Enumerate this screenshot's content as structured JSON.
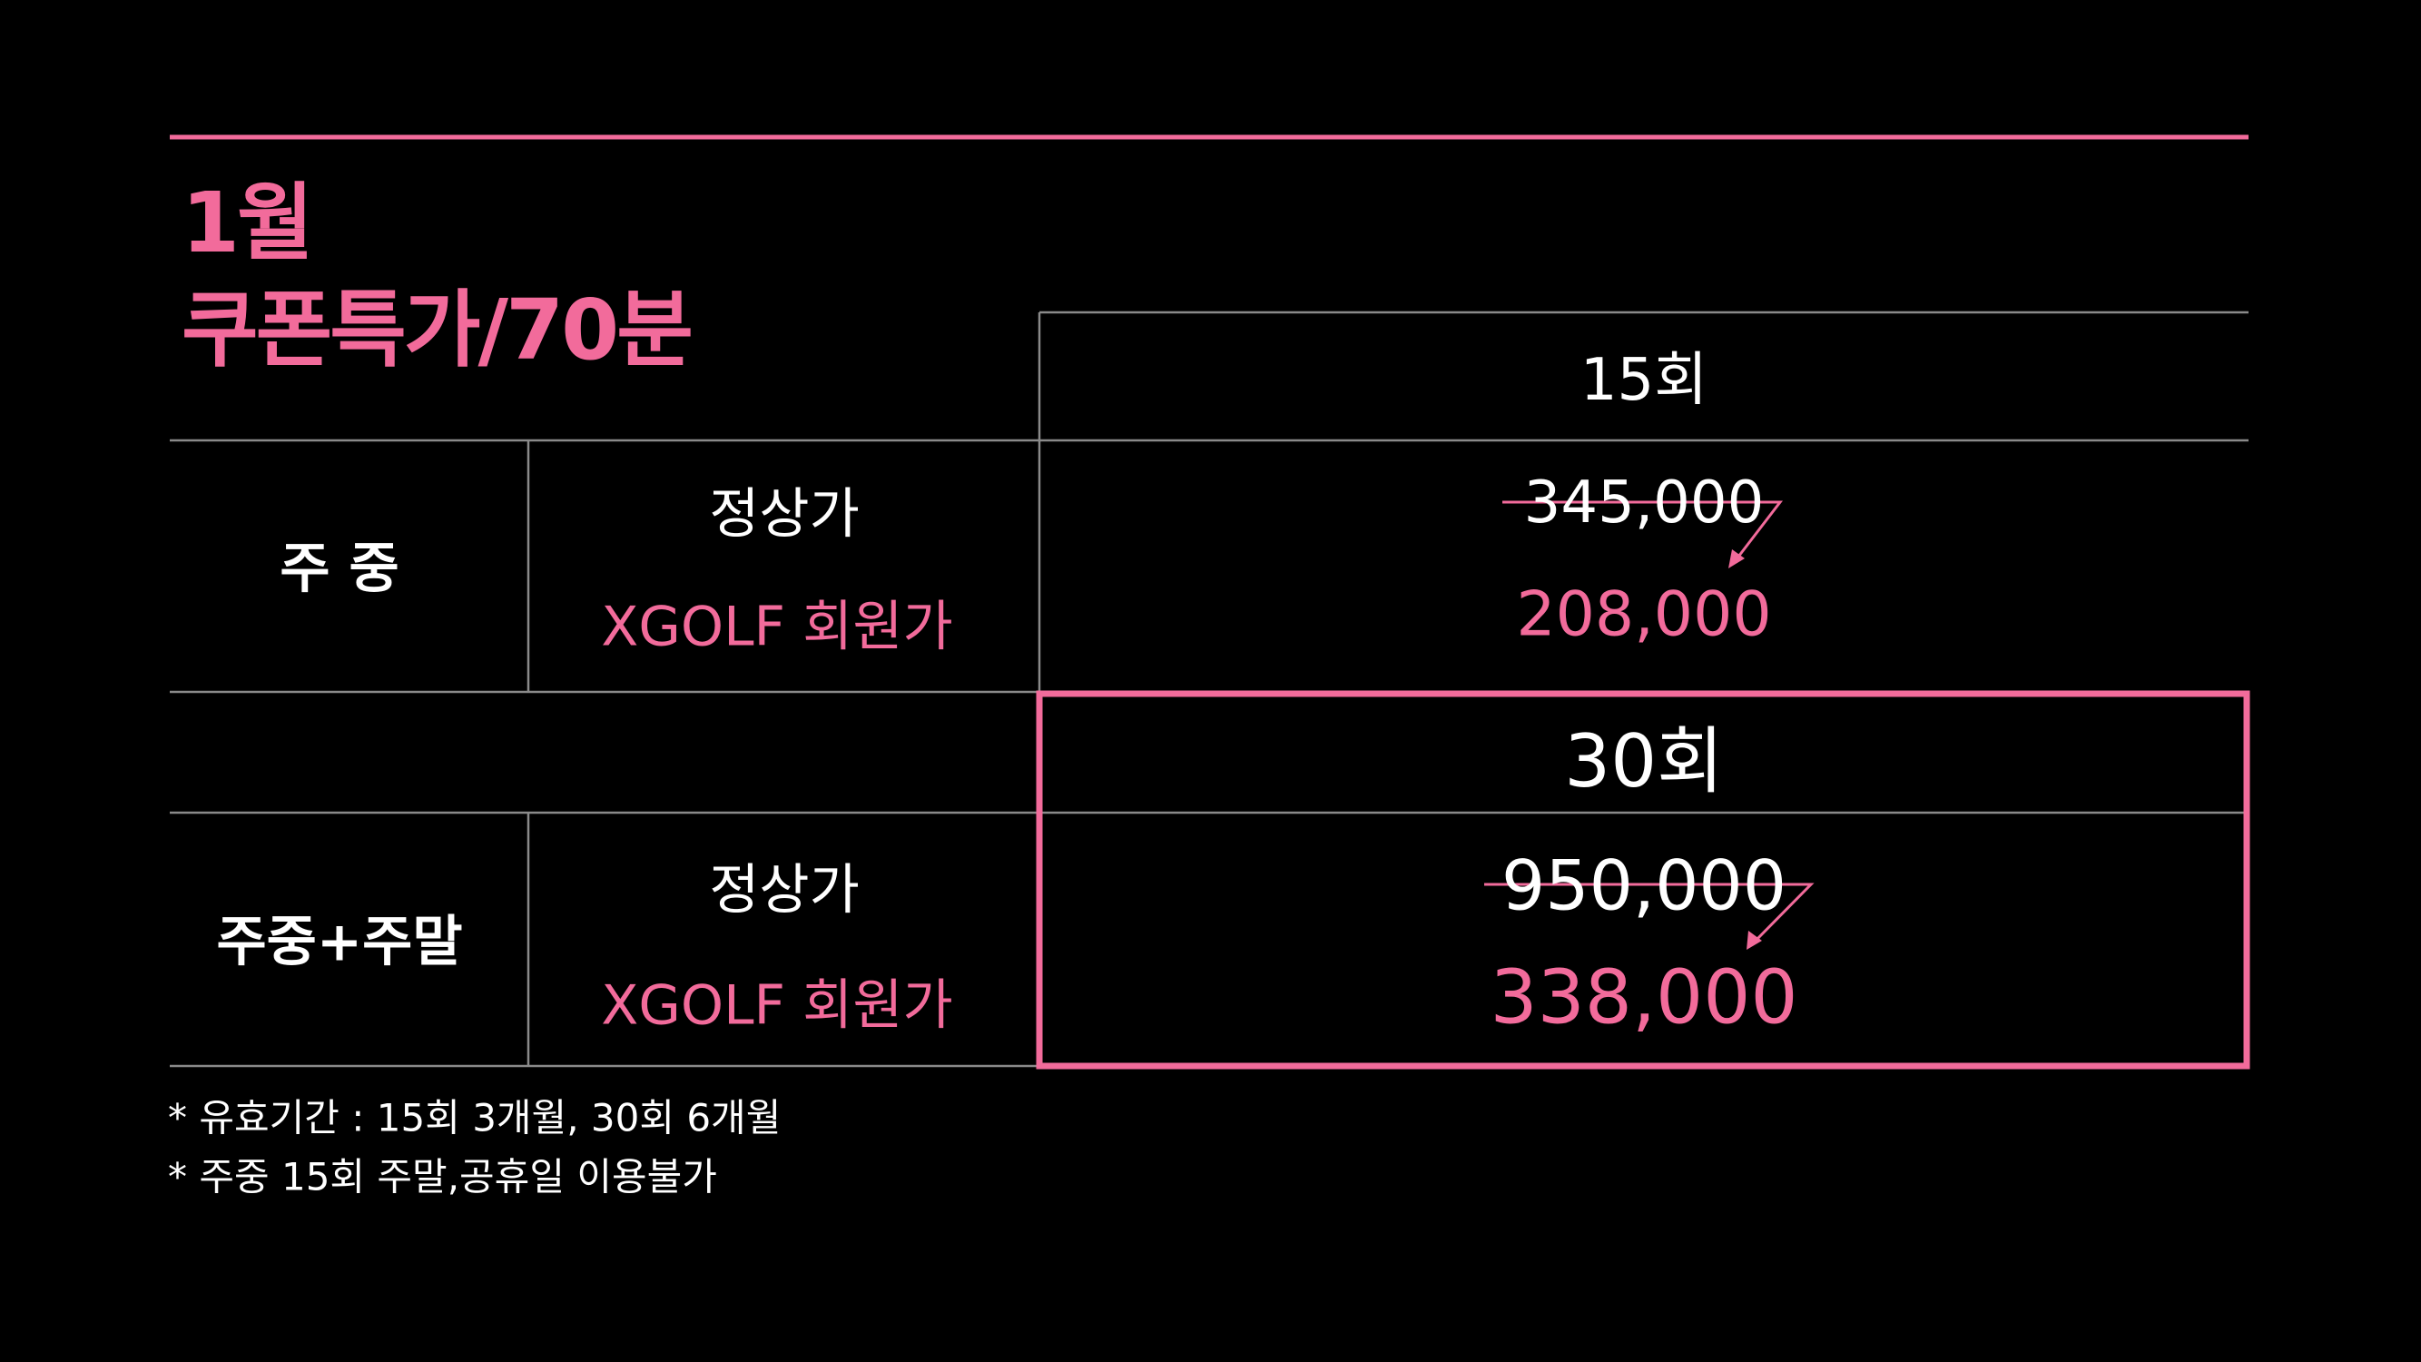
{
  "title": {
    "line1": "1월",
    "line2": "쿠폰특가/70분"
  },
  "colors": {
    "accent": "#f26b9b",
    "background": "#000000",
    "grid": "#8a8a8a"
  },
  "plans": [
    {
      "sessions": "15회",
      "category": "주 중",
      "regular_label": "정상가",
      "member_label": "XGOLF 회원가",
      "regular_price": "345,000",
      "member_price": "208,000",
      "highlighted": false
    },
    {
      "sessions": "30회",
      "category": "주중+주말",
      "regular_label": "정상가",
      "member_label": "XGOLF 회원가",
      "regular_price": "950,000",
      "member_price": "338,000",
      "highlighted": true
    }
  ],
  "notes": [
    "* 유효기간 : 15회 3개월, 30회 6개월",
    "* 주중 15회 주말,공휴일 이용불가"
  ]
}
